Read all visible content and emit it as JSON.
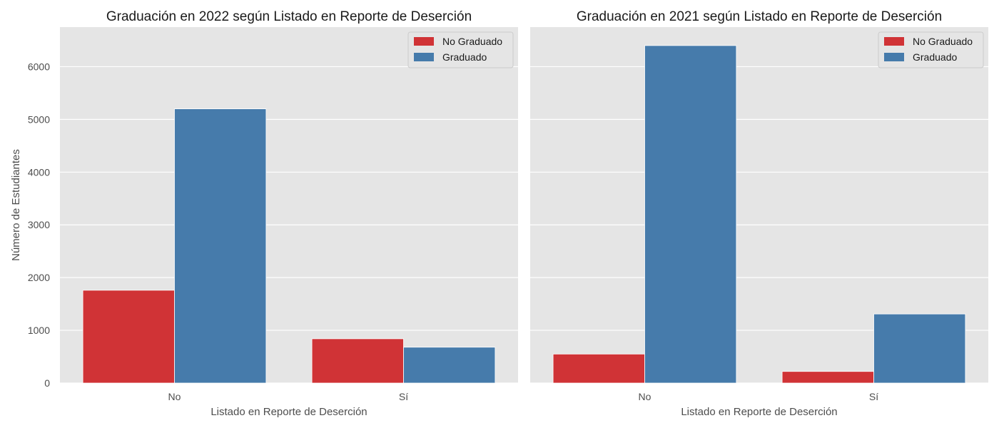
{
  "chart_data": [
    {
      "type": "bar",
      "title": "Graduación en 2022 según Listado en Reporte de Deserción",
      "xlabel": "Listado en Reporte de Deserción",
      "ylabel": "Número de Estudiantes",
      "categories": [
        "No",
        "Sí"
      ],
      "series": [
        {
          "name": "No Graduado",
          "color": "#d03336",
          "values": [
            1760,
            840
          ]
        },
        {
          "name": "Graduado",
          "color": "#467bab",
          "values": [
            5200,
            680
          ]
        }
      ],
      "ylim": [
        0,
        6750
      ],
      "yticks": [
        0,
        1000,
        2000,
        3000,
        4000,
        5000,
        6000
      ],
      "grid": true,
      "legend": "top-right"
    },
    {
      "type": "bar",
      "title": "Graduación en 2021 según Listado en Reporte de Deserción",
      "xlabel": "Listado en Reporte de Deserción",
      "ylabel": "",
      "categories": [
        "No",
        "Sí"
      ],
      "series": [
        {
          "name": "No Graduado",
          "color": "#d03336",
          "values": [
            550,
            220
          ]
        },
        {
          "name": "Graduado",
          "color": "#467bab",
          "values": [
            6400,
            1310
          ]
        }
      ],
      "ylim": [
        0,
        6750
      ],
      "yticks": [
        0,
        1000,
        2000,
        3000,
        4000,
        5000,
        6000
      ],
      "grid": true,
      "legend": "top-right"
    }
  ]
}
